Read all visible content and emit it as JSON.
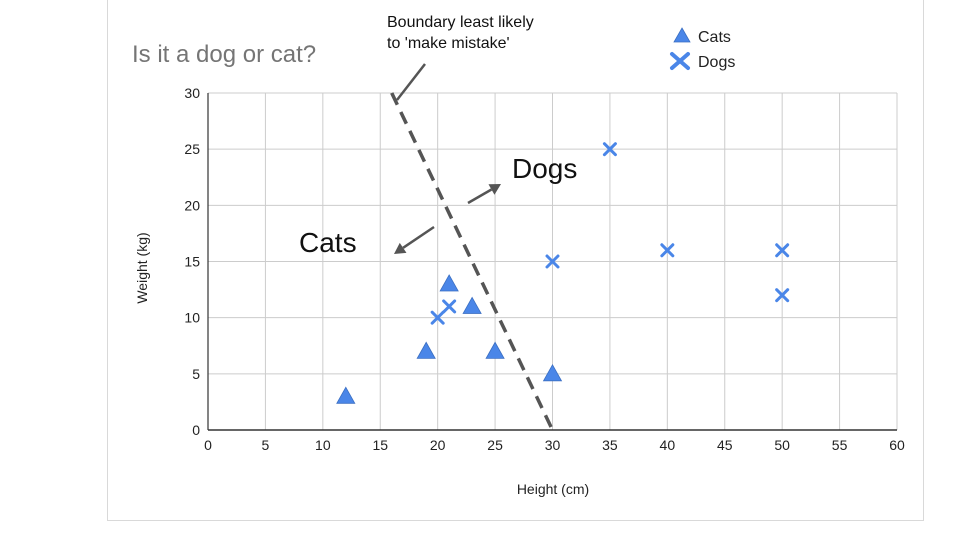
{
  "chart_data": {
    "type": "scatter",
    "title": "Is it a dog or cat?",
    "xlabel": "Height (cm)",
    "ylabel": "Weight (kg)",
    "xlim": [
      0,
      60
    ],
    "ylim": [
      0,
      30
    ],
    "x_ticks": [
      "0",
      "5",
      "10",
      "15",
      "20",
      "25",
      "30",
      "35",
      "40",
      "45",
      "50",
      "55",
      "60"
    ],
    "y_ticks": [
      "0",
      "5",
      "10",
      "15",
      "20",
      "25",
      "30"
    ],
    "grid": true,
    "legend_position": "top-right",
    "series": [
      {
        "name": "Cats",
        "marker": "triangle",
        "color": "#4a86e8",
        "points": [
          [
            12,
            3
          ],
          [
            19,
            7
          ],
          [
            21,
            13
          ],
          [
            23,
            11
          ],
          [
            25,
            7
          ],
          [
            30,
            5
          ]
        ]
      },
      {
        "name": "Dogs",
        "marker": "x",
        "color": "#4a86e8",
        "points": [
          [
            20,
            10
          ],
          [
            21,
            11
          ],
          [
            30,
            15
          ],
          [
            35,
            25
          ],
          [
            40,
            16
          ],
          [
            50,
            16
          ],
          [
            50,
            12
          ]
        ]
      }
    ],
    "annotations": {
      "boundary_line_1": "Boundary least likely",
      "boundary_line_2": "to 'make mistake'",
      "dogs_label": "Dogs",
      "cats_label": "Cats",
      "boundary": [
        [
          16,
          30
        ],
        [
          30,
          0
        ]
      ]
    }
  }
}
